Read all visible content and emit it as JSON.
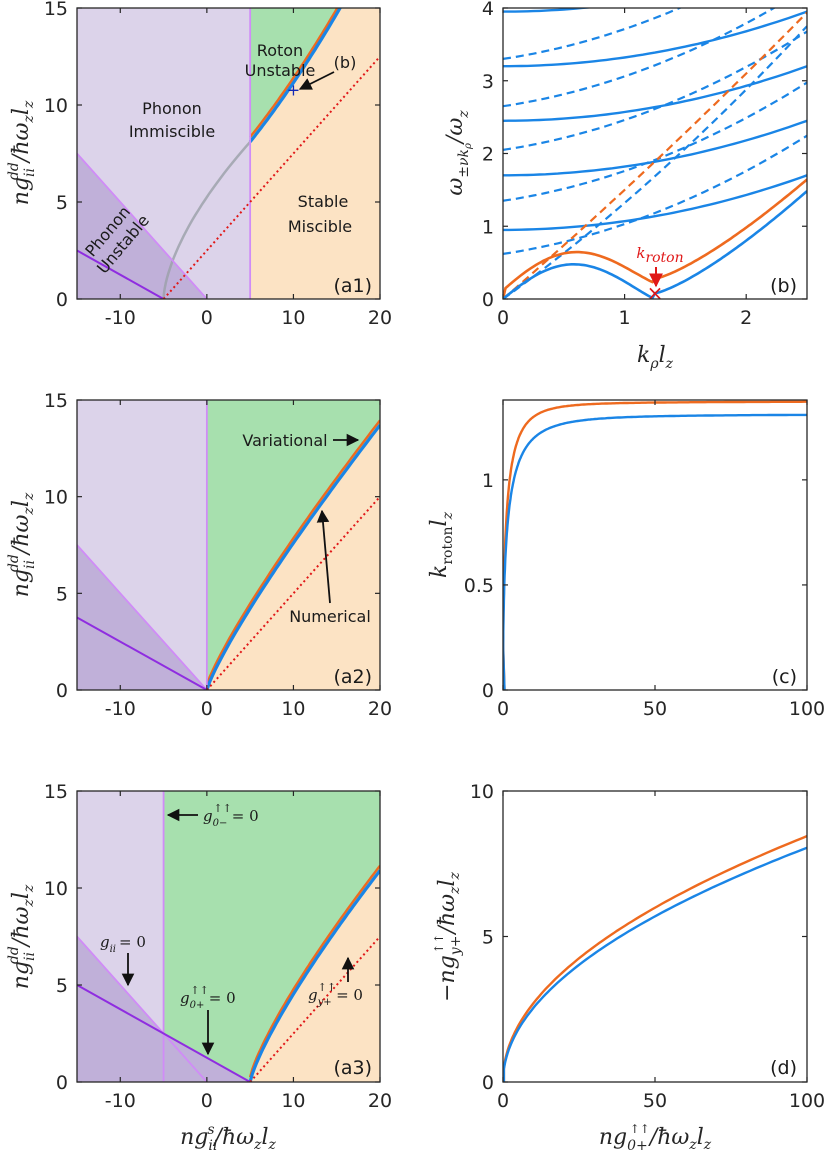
{
  "colors": {
    "immiscible": "#dcd3ea",
    "unstable": "#c0b0d9",
    "roton": "#a7e0ae",
    "miscible": "#fce3c4",
    "blue": "#1a85e6",
    "orange": "#ee6a1f",
    "purple": "#8f2de0",
    "lightpurple": "#d08cf7",
    "red": "#e01818",
    "axis": "#262626"
  },
  "chart_data": [
    {
      "id": "a1",
      "type": "phase-diagram",
      "panel_label": "(a1)",
      "ylabel": "ng_ii^dd/ħω_z l_z",
      "xlim": [
        -15,
        20
      ],
      "ylim": [
        0,
        15
      ],
      "xticks": [
        {
          "v": -10,
          "t": "-10"
        },
        {
          "v": 0,
          "t": "0"
        },
        {
          "v": 10,
          "t": "10"
        },
        {
          "v": 20,
          "t": "20"
        }
      ],
      "yticks": [
        {
          "v": 0,
          "t": "0"
        },
        {
          "v": 5,
          "t": "5"
        },
        {
          "v": 10,
          "t": "10"
        },
        {
          "v": 15,
          "t": "15"
        }
      ],
      "region_labels": {
        "phonon_immiscible": [
          "Phonon",
          "Immiscible"
        ],
        "roton_unstable": [
          "Roton",
          "Unstable"
        ],
        "stable_miscible": [
          "Stable",
          "Miscible"
        ],
        "phonon_unstable": [
          "Phonon",
          "Unstable"
        ]
      },
      "marker_label": "(b)",
      "marker_point": [
        10,
        10.8
      ]
    },
    {
      "id": "b",
      "type": "line",
      "panel_label": "(b)",
      "xlabel": "k_ρ l_z",
      "ylabel": "ω_{±νk_ρ}/ω_z",
      "xlim": [
        0,
        2.5
      ],
      "ylim": [
        0,
        4
      ],
      "xticks": [
        {
          "v": 0,
          "t": "0"
        },
        {
          "v": 1,
          "t": "1"
        },
        {
          "v": 2,
          "t": "2"
        }
      ],
      "yticks": [
        {
          "v": 0,
          "t": "0"
        },
        {
          "v": 1,
          "t": "1"
        },
        {
          "v": 2,
          "t": "2"
        },
        {
          "v": 3,
          "t": "3"
        },
        {
          "v": 4,
          "t": "4"
        }
      ],
      "solid_offsets": [
        0.95,
        1.7,
        2.45,
        3.2,
        3.95
      ],
      "dashed_offsets": [
        0.62,
        1.35,
        2.05,
        2.65,
        3.3
      ],
      "annotation": {
        "text": "k",
        "sub": "roton",
        "k": 1.25,
        "omega": 0.08
      }
    },
    {
      "id": "a2",
      "type": "phase-diagram",
      "panel_label": "(a2)",
      "ylabel": "ng_ii^dd/ħω_z l_z",
      "xlim": [
        -15,
        20
      ],
      "ylim": [
        0,
        15
      ],
      "xticks": [
        {
          "v": -10,
          "t": "-10"
        },
        {
          "v": 0,
          "t": "0"
        },
        {
          "v": 10,
          "t": "10"
        },
        {
          "v": 20,
          "t": "20"
        }
      ],
      "yticks": [
        {
          "v": 0,
          "t": "0"
        },
        {
          "v": 5,
          "t": "5"
        },
        {
          "v": 10,
          "t": "10"
        },
        {
          "v": 15,
          "t": "15"
        }
      ],
      "annotations": {
        "variational": "Variational",
        "numerical": "Numerical"
      }
    },
    {
      "id": "c",
      "type": "line",
      "panel_label": "(c)",
      "ylabel": "k_roton l_z",
      "xlim": [
        0,
        100
      ],
      "ylim": [
        0,
        1.38
      ],
      "xticks": [
        {
          "v": 0,
          "t": "0"
        },
        {
          "v": 50,
          "t": "50"
        },
        {
          "v": 100,
          "t": "100"
        }
      ],
      "yticks": [
        {
          "v": 0,
          "t": "0"
        },
        {
          "v": 0.5,
          "t": "0.5"
        },
        {
          "v": 1,
          "t": "1"
        }
      ],
      "series": [
        {
          "name": "variational",
          "asymptote": 1.4
        },
        {
          "name": "numerical",
          "asymptote": 1.33
        }
      ]
    },
    {
      "id": "a3",
      "type": "phase-diagram",
      "panel_label": "(a3)",
      "xlabel": "ng_ii^s/ħω_z l_z",
      "ylabel": "ng_ii^dd/ħω_z l_z",
      "xlim": [
        -15,
        20
      ],
      "ylim": [
        0,
        15
      ],
      "xticks": [
        {
          "v": -10,
          "t": "-10"
        },
        {
          "v": 0,
          "t": "0"
        },
        {
          "v": 10,
          "t": "10"
        },
        {
          "v": 20,
          "t": "20"
        }
      ],
      "yticks": [
        {
          "v": 0,
          "t": "0"
        },
        {
          "v": 5,
          "t": "5"
        },
        {
          "v": 10,
          "t": "10"
        },
        {
          "v": 15,
          "t": "15"
        }
      ],
      "annotations": {
        "g0minus": "= 0",
        "gii": "= 0",
        "g0plus": "= 0",
        "gyplus": "= 0"
      }
    },
    {
      "id": "d",
      "type": "line",
      "panel_label": "(d)",
      "xlabel": "ng_{0+}^{↑↑}/ħω_z l_z",
      "ylabel": "-ng_{y+}^{↑↑}/ħω_z l_z",
      "xlim": [
        0,
        100
      ],
      "ylim": [
        0,
        10
      ],
      "xticks": [
        {
          "v": 0,
          "t": "0"
        },
        {
          "v": 50,
          "t": "50"
        },
        {
          "v": 100,
          "t": "100"
        }
      ],
      "yticks": [
        {
          "v": 0,
          "t": "0"
        },
        {
          "v": 5,
          "t": "5"
        },
        {
          "v": 10,
          "t": "10"
        }
      ],
      "series": [
        {
          "name": "variational",
          "y_at_100": 8.4
        },
        {
          "name": "numerical",
          "y_at_100": 8.05
        }
      ]
    }
  ]
}
